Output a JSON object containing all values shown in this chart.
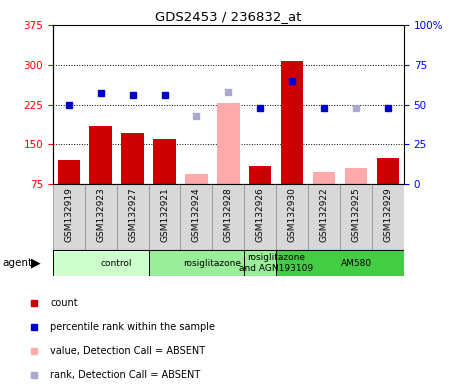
{
  "title": "GDS2453 / 236832_at",
  "samples": [
    "GSM132919",
    "GSM132923",
    "GSM132927",
    "GSM132921",
    "GSM132924",
    "GSM132928",
    "GSM132926",
    "GSM132930",
    "GSM132922",
    "GSM132925",
    "GSM132929"
  ],
  "bar_values": [
    120,
    185,
    172,
    160,
    null,
    null,
    110,
    308,
    null,
    null,
    125
  ],
  "bar_absent_values": [
    null,
    null,
    null,
    null,
    95,
    228,
    null,
    null,
    98,
    105,
    null
  ],
  "rank_present": [
    50,
    57,
    56,
    56,
    null,
    null,
    48,
    65,
    48,
    null,
    48
  ],
  "rank_absent": [
    null,
    null,
    null,
    null,
    43,
    58,
    null,
    null,
    null,
    48,
    null
  ],
  "bar_color_present": "#cc0000",
  "bar_color_absent": "#ffaaaa",
  "dot_color_present": "#0000cc",
  "dot_color_absent": "#aaaacc",
  "ylim_left": [
    75,
    375
  ],
  "ylim_right": [
    0,
    100
  ],
  "yticks_left": [
    75,
    150,
    225,
    300,
    375
  ],
  "yticks_right": [
    0,
    25,
    50,
    75,
    100
  ],
  "groups": [
    {
      "label": "control",
      "start": 0,
      "end": 3,
      "color": "#ccffcc"
    },
    {
      "label": "rosiglitazone",
      "start": 3,
      "end": 6,
      "color": "#99ee99"
    },
    {
      "label": "rosiglitazone\nand AGN193109",
      "start": 6,
      "end": 7,
      "color": "#99ee99"
    },
    {
      "label": "AM580",
      "start": 7,
      "end": 11,
      "color": "#44cc44"
    }
  ],
  "legend_items": [
    {
      "label": "count",
      "color": "#cc0000"
    },
    {
      "label": "percentile rank within the sample",
      "color": "#0000cc"
    },
    {
      "label": "value, Detection Call = ABSENT",
      "color": "#ffaaaa"
    },
    {
      "label": "rank, Detection Call = ABSENT",
      "color": "#aaaacc"
    }
  ],
  "agent_label": "agent",
  "bg_color": "#d8d8d8",
  "plot_bg": "#ffffff"
}
